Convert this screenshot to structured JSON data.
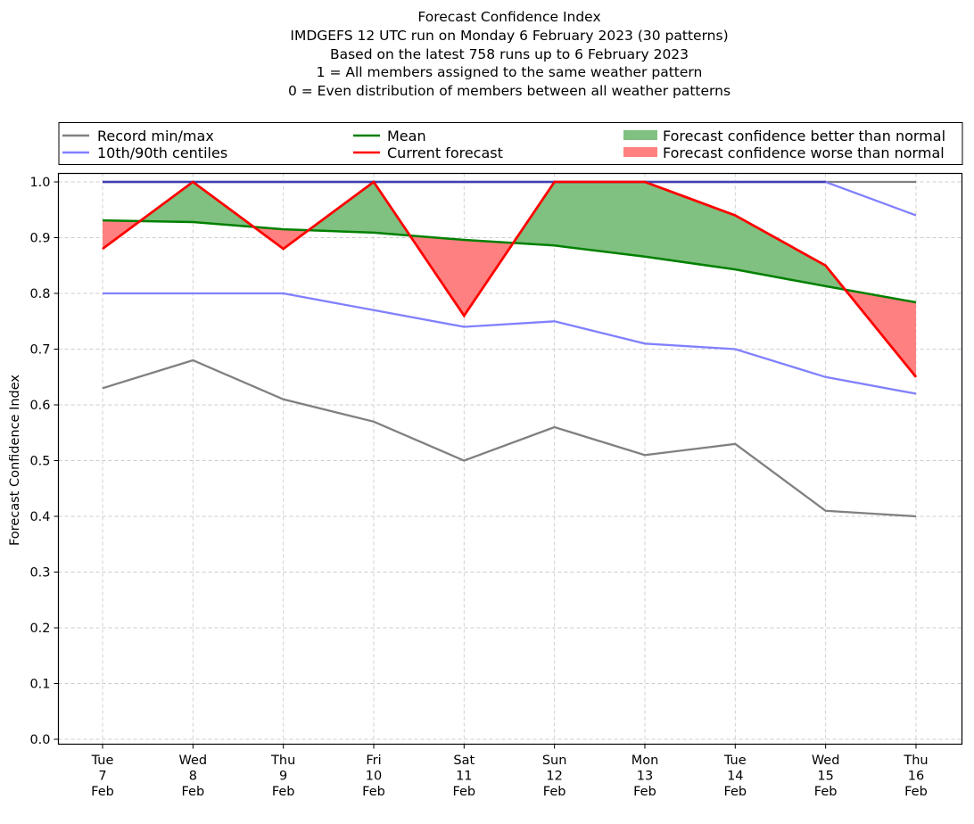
{
  "chart_data": {
    "type": "line",
    "title_lines": [
      "Forecast Confidence Index",
      "IMDGEFS 12 UTC run on Monday 6 February 2023 (30 patterns)",
      "Based on the latest 758 runs up to 6 February 2023",
      "1 = All members assigned to the same weather pattern",
      "0 = Even distribution of members between all weather patterns"
    ],
    "ylabel": "Forecast Confidence Index",
    "xlabel": "",
    "ylim": [
      0.0,
      1.0
    ],
    "yticks": [
      "0.0",
      "0.1",
      "0.2",
      "0.3",
      "0.4",
      "0.5",
      "0.6",
      "0.7",
      "0.8",
      "0.9",
      "1.0"
    ],
    "grid": true,
    "legend_position": "top (above plot, 3 columns)",
    "categories": [
      {
        "dow": "Tue",
        "day": "7",
        "month": "Feb"
      },
      {
        "dow": "Wed",
        "day": "8",
        "month": "Feb"
      },
      {
        "dow": "Thu",
        "day": "9",
        "month": "Feb"
      },
      {
        "dow": "Fri",
        "day": "10",
        "month": "Feb"
      },
      {
        "dow": "Sat",
        "day": "11",
        "month": "Feb"
      },
      {
        "dow": "Sun",
        "day": "12",
        "month": "Feb"
      },
      {
        "dow": "Mon",
        "day": "13",
        "month": "Feb"
      },
      {
        "dow": "Tue",
        "day": "14",
        "month": "Feb"
      },
      {
        "dow": "Wed",
        "day": "15",
        "month": "Feb"
      },
      {
        "dow": "Thu",
        "day": "16",
        "month": "Feb"
      }
    ],
    "series": [
      {
        "name": "Record max",
        "key": "record_max",
        "color": "#808080",
        "values": [
          1.0,
          1.0,
          1.0,
          1.0,
          1.0,
          1.0,
          1.0,
          1.0,
          1.0,
          1.0
        ]
      },
      {
        "name": "Record min",
        "key": "record_min",
        "color": "#808080",
        "values": [
          0.63,
          0.68,
          0.61,
          0.57,
          0.5,
          0.56,
          0.51,
          0.53,
          0.41,
          0.4
        ]
      },
      {
        "name": "90th centile",
        "key": "p90",
        "color": "#8080ff",
        "values": [
          1.0,
          1.0,
          1.0,
          1.0,
          1.0,
          1.0,
          1.0,
          1.0,
          1.0,
          0.94
        ]
      },
      {
        "name": "10th centile",
        "key": "p10",
        "color": "#8080ff",
        "values": [
          0.8,
          0.8,
          0.8,
          0.77,
          0.74,
          0.75,
          0.71,
          0.7,
          0.65,
          0.62
        ]
      },
      {
        "name": "Mean",
        "key": "mean",
        "color": "#008000",
        "values": [
          0.931,
          0.928,
          0.915,
          0.909,
          0.896,
          0.886,
          0.866,
          0.843,
          0.813,
          0.784
        ]
      },
      {
        "name": "Current forecast",
        "key": "current",
        "color": "#ff0000",
        "values": [
          0.88,
          1.0,
          0.88,
          1.0,
          0.76,
          1.0,
          1.0,
          0.94,
          0.85,
          0.65
        ]
      }
    ],
    "fill_colors": {
      "better": "#80c080",
      "worse": "#ff8080"
    },
    "legend": [
      {
        "label": "Record min/max",
        "kind": "line",
        "color": "#808080"
      },
      {
        "label": "10th/90th centiles",
        "kind": "line",
        "color": "#8080ff"
      },
      {
        "label": "Mean",
        "kind": "line",
        "color": "#008000"
      },
      {
        "label": "Current forecast",
        "kind": "line",
        "color": "#ff0000"
      },
      {
        "label": "Forecast confidence better than normal",
        "kind": "patch",
        "color": "#80c080"
      },
      {
        "label": "Forecast confidence worse than normal",
        "kind": "patch",
        "color": "#ff8080"
      }
    ]
  }
}
